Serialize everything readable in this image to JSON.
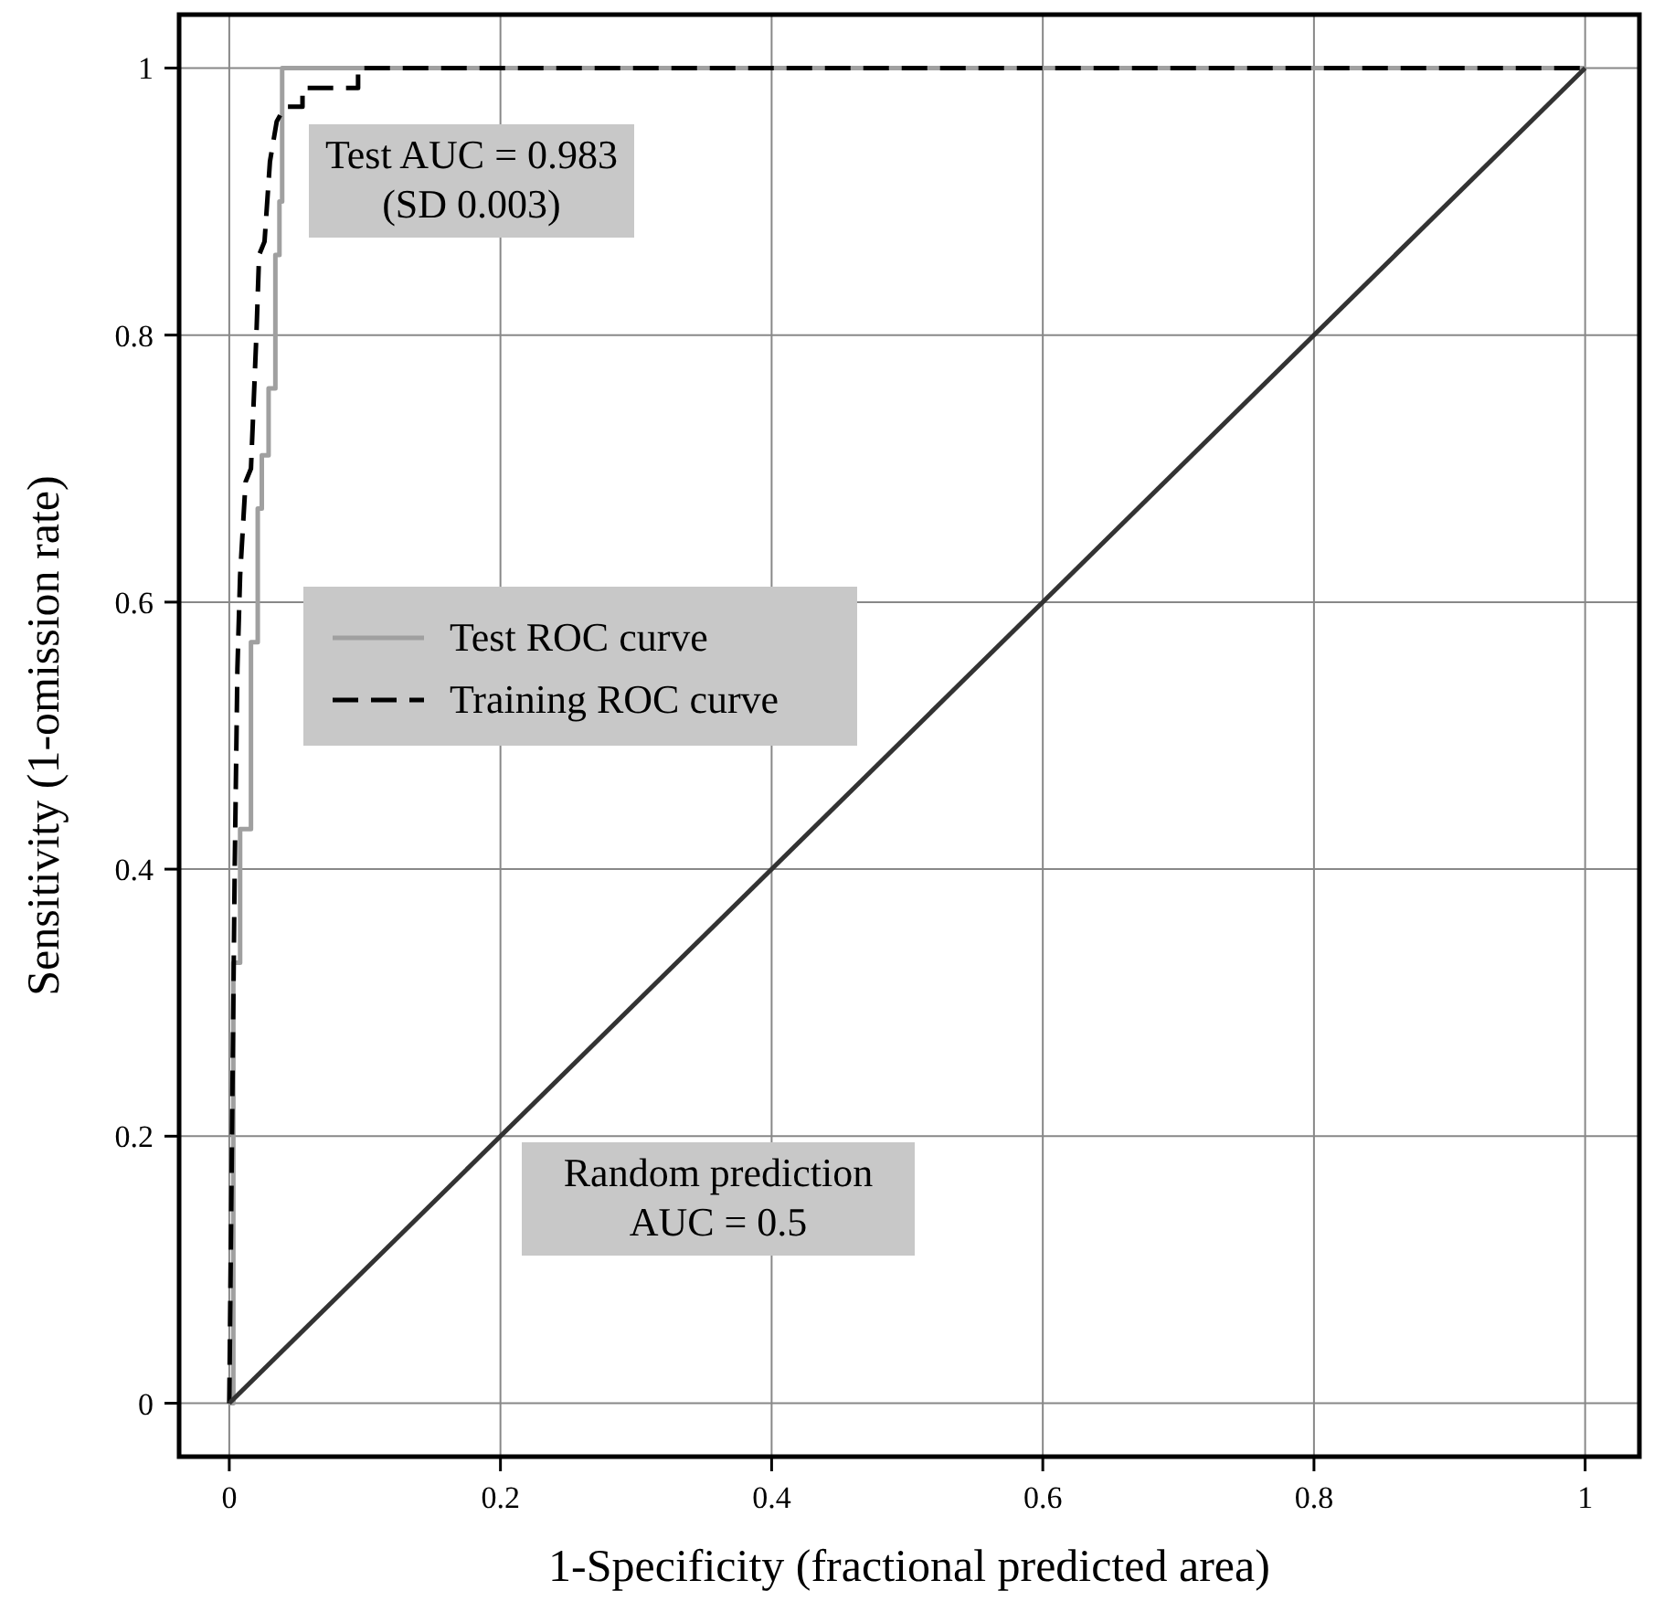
{
  "chart_data": {
    "type": "line",
    "xlabel": "1-Specificity (fractional predicted area)",
    "ylabel": "Sensitivity (1-omission rate)",
    "xlim": [
      -0.037,
      1.04
    ],
    "ylim": [
      -0.04,
      1.04
    ],
    "xticks": [
      0,
      0.2,
      0.4,
      0.6,
      0.8,
      1
    ],
    "yticks": [
      0,
      0.2,
      0.4,
      0.6,
      0.8,
      1
    ],
    "grid": true,
    "legend": "left",
    "series": [
      {
        "name": "Test ROC curve",
        "color": "#a0a0a0",
        "line_style": "solid",
        "x": [
          0,
          0.003,
          0.003,
          0.008,
          0.008,
          0.016,
          0.016,
          0.021,
          0.021,
          0.024,
          0.024,
          0.029,
          0.029,
          0.034,
          0.034,
          0.037,
          0.037,
          0.039,
          0.039,
          1
        ],
        "values": [
          0,
          0,
          0.33,
          0.33,
          0.43,
          0.43,
          0.57,
          0.57,
          0.67,
          0.67,
          0.71,
          0.71,
          0.76,
          0.76,
          0.86,
          0.86,
          0.9,
          0.9,
          1,
          1
        ]
      },
      {
        "name": "Training ROC curve",
        "color": "#000000",
        "line_style": "dashed",
        "x": [
          0,
          0.002,
          0.004,
          0.006,
          0.008,
          0.012,
          0.016,
          0.02,
          0.022,
          0.026,
          0.03,
          0.035,
          0.041,
          0.054,
          0.054,
          0.095,
          0.095,
          1
        ],
        "values": [
          0,
          0.2,
          0.4,
          0.55,
          0.62,
          0.69,
          0.7,
          0.8,
          0.86,
          0.87,
          0.93,
          0.96,
          0.971,
          0.971,
          0.985,
          0.985,
          1,
          1
        ]
      },
      {
        "color": "#333333",
        "line_style": "solid",
        "x": [
          0,
          1
        ],
        "values": [
          0,
          1
        ]
      }
    ],
    "annotations": [
      "Test AUC = 0.983\n(SD 0.003)",
      "Random prediction\nAUC = 0.5"
    ]
  }
}
